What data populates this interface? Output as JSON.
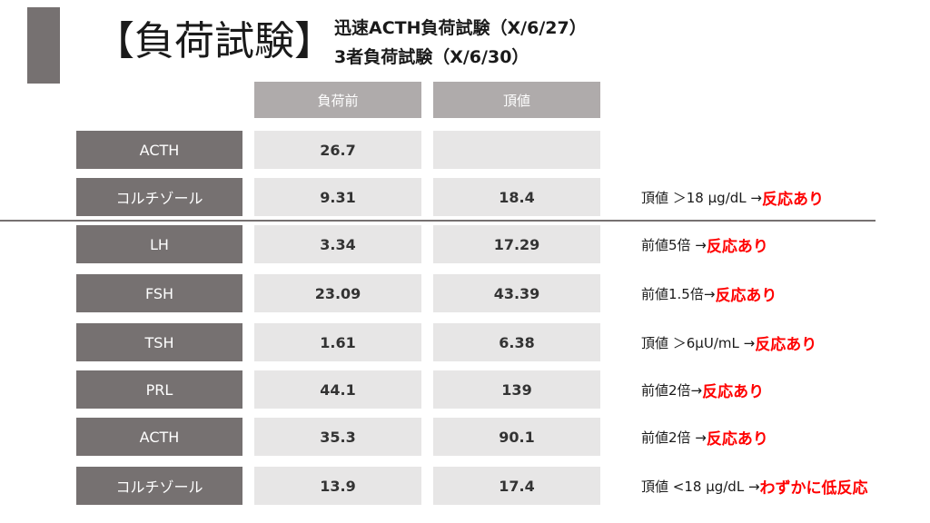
{
  "slide": {
    "title": "【負荷試験】",
    "subtitle_1": "迅速ACTH負荷試験（X/6/27）",
    "subtitle_2": "3者負荷試験（X/6/30）"
  },
  "table": {
    "columns": [
      "負荷前",
      "頂値"
    ],
    "rows": [
      {
        "label": "ACTH",
        "pre": "26.7",
        "peak": "",
        "note": "",
        "result": ""
      },
      {
        "label": "コルチゾール",
        "pre": "9.31",
        "peak": "18.4",
        "note": "頂値 ＞18 µg/dL → ",
        "result": "反応あり"
      },
      {
        "label": "LH",
        "pre": "3.34",
        "peak": "17.29",
        "note": "前値5倍 → ",
        "result": "反応あり"
      },
      {
        "label": "FSH",
        "pre": "23.09",
        "peak": "43.39",
        "note": "前値1.5倍→ ",
        "result": "反応あり"
      },
      {
        "label": "TSH",
        "pre": "1.61",
        "peak": "6.38",
        "note": "頂値 ＞6µU/mL → ",
        "result": "反応あり"
      },
      {
        "label": "PRL",
        "pre": "44.1",
        "peak": "139",
        "note": "前値2倍→ ",
        "result": "反応あり"
      },
      {
        "label": "ACTH",
        "pre": "35.3",
        "peak": "90.1",
        "note": "前値2倍 → ",
        "result": "反応あり"
      },
      {
        "label": "コルチゾール",
        "pre": "13.9",
        "peak": "17.4",
        "note": "頂値 <18 µg/dL →",
        "result": "わずかに低反応"
      }
    ]
  },
  "colors": {
    "dark_cell": "#767171",
    "header_cell": "#afabab",
    "value_cell": "#e7e6e6",
    "result_text": "#ff0000"
  }
}
